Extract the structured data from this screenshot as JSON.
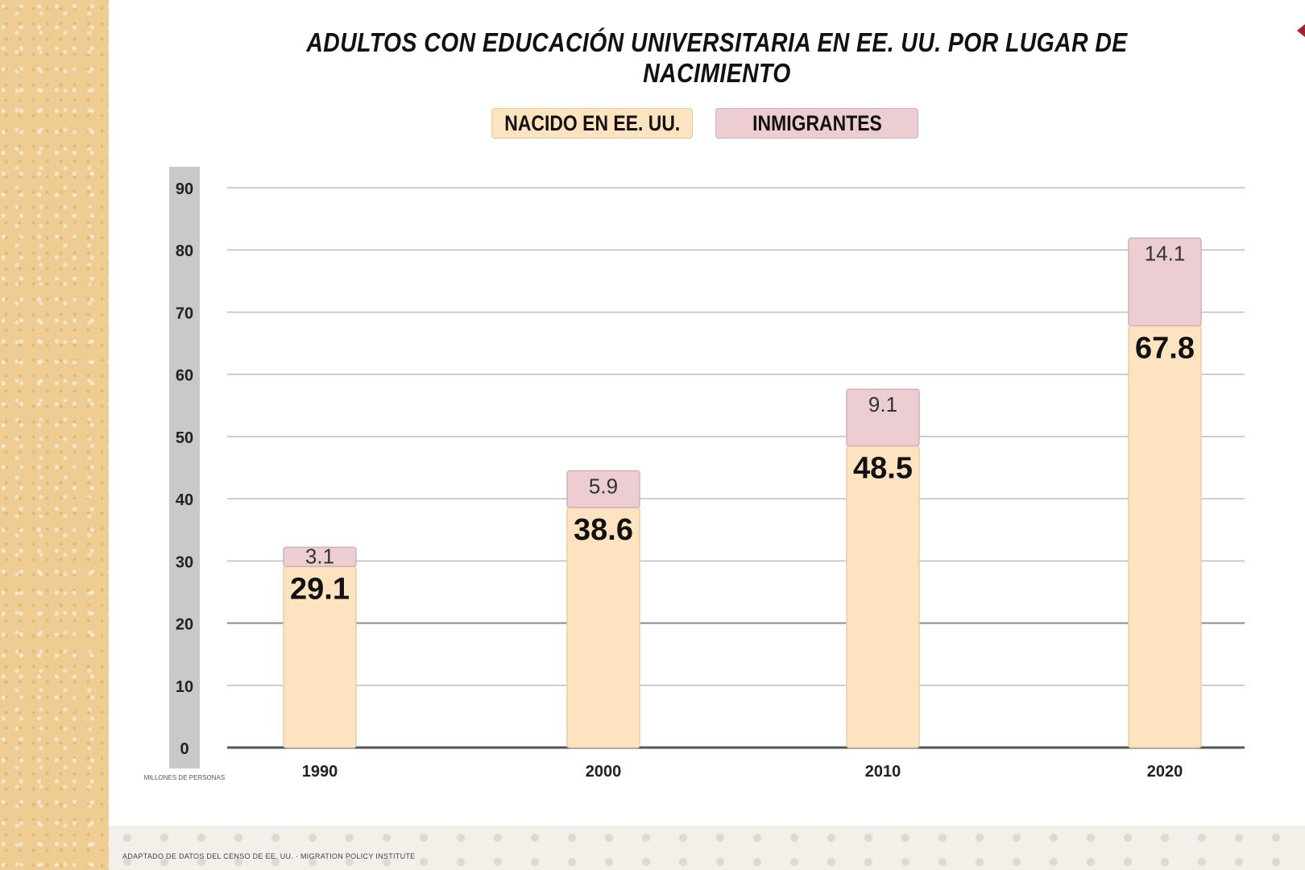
{
  "colors": {
    "us_born": "#fde3bf",
    "us_born_border": "#e8cfa9",
    "immigrants": "#ebcdd2",
    "immigrants_border": "#d3b1b7",
    "axis_band": "#c9c9c9",
    "side_panel": "#efcc92",
    "corner_mark": "#a3242b"
  },
  "chart_data": {
    "type": "bar",
    "stacked": true,
    "title": "ADULTOS CON EDUCACIÓN UNIVERSITARIA EN EE. UU. POR LUGAR DE NACIMIENTO",
    "categories": [
      "1990",
      "2000",
      "2010",
      "2020"
    ],
    "series": [
      {
        "name": "NACIDO EN EE. UU.",
        "values": [
          29.1,
          38.6,
          48.5,
          67.8
        ]
      },
      {
        "name": "INMIGRANTES",
        "values": [
          3.1,
          5.9,
          9.1,
          14.1
        ]
      }
    ],
    "ylim": [
      0,
      90
    ],
    "yticks": [
      0,
      10,
      20,
      30,
      40,
      50,
      60,
      70,
      80,
      90
    ],
    "legend": "top-center",
    "grid": true,
    "ylabel": "MILLONES DE PERSONAS"
  },
  "source_note": "ADAPTADO DE DATOS DEL CENSO DE EE. UU. · MIGRATION POLICY INSTITUTE"
}
